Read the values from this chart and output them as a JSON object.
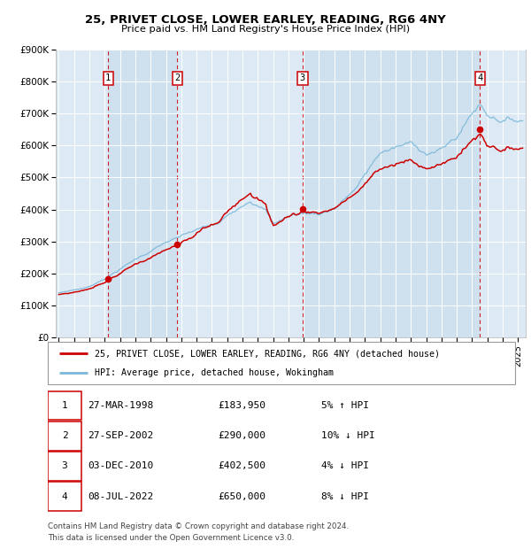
{
  "title1": "25, PRIVET CLOSE, LOWER EARLEY, READING, RG6 4NY",
  "title2": "Price paid vs. HM Land Registry's House Price Index (HPI)",
  "legend_line1": "25, PRIVET CLOSE, LOWER EARLEY, READING, RG6 4NY (detached house)",
  "legend_line2": "HPI: Average price, detached house, Wokingham",
  "footer1": "Contains HM Land Registry data © Crown copyright and database right 2024.",
  "footer2": "This data is licensed under the Open Government Licence v3.0.",
  "hpi_color": "#7ab8d9",
  "price_color": "#cc0000",
  "plot_bg": "#e8f0f8",
  "transactions": [
    {
      "num": 1,
      "date_label": "27-MAR-1998",
      "price": 183950,
      "pct": "5%",
      "dir": "↑",
      "x_year": 1998.23
    },
    {
      "num": 2,
      "date_label": "27-SEP-2002",
      "price": 290000,
      "pct": "10%",
      "dir": "↓",
      "x_year": 2002.74
    },
    {
      "num": 3,
      "date_label": "03-DEC-2010",
      "price": 402500,
      "pct": "4%",
      "dir": "↓",
      "x_year": 2010.92
    },
    {
      "num": 4,
      "date_label": "08-JUL-2022",
      "price": 650000,
      "pct": "8%",
      "dir": "↓",
      "x_year": 2022.52
    }
  ],
  "ylim": [
    0,
    900000
  ],
  "xlim_start": 1994.8,
  "xlim_end": 2025.5,
  "yticks": [
    0,
    100000,
    200000,
    300000,
    400000,
    500000,
    600000,
    700000,
    800000,
    900000
  ],
  "ytick_labels": [
    "£0",
    "£100K",
    "£200K",
    "£300K",
    "£400K",
    "£500K",
    "£600K",
    "£700K",
    "£800K",
    "£900K"
  ],
  "xticks": [
    1995,
    1996,
    1997,
    1998,
    1999,
    2000,
    2001,
    2002,
    2003,
    2004,
    2005,
    2006,
    2007,
    2008,
    2009,
    2010,
    2011,
    2012,
    2013,
    2014,
    2015,
    2016,
    2017,
    2018,
    2019,
    2020,
    2021,
    2022,
    2023,
    2024,
    2025
  ]
}
